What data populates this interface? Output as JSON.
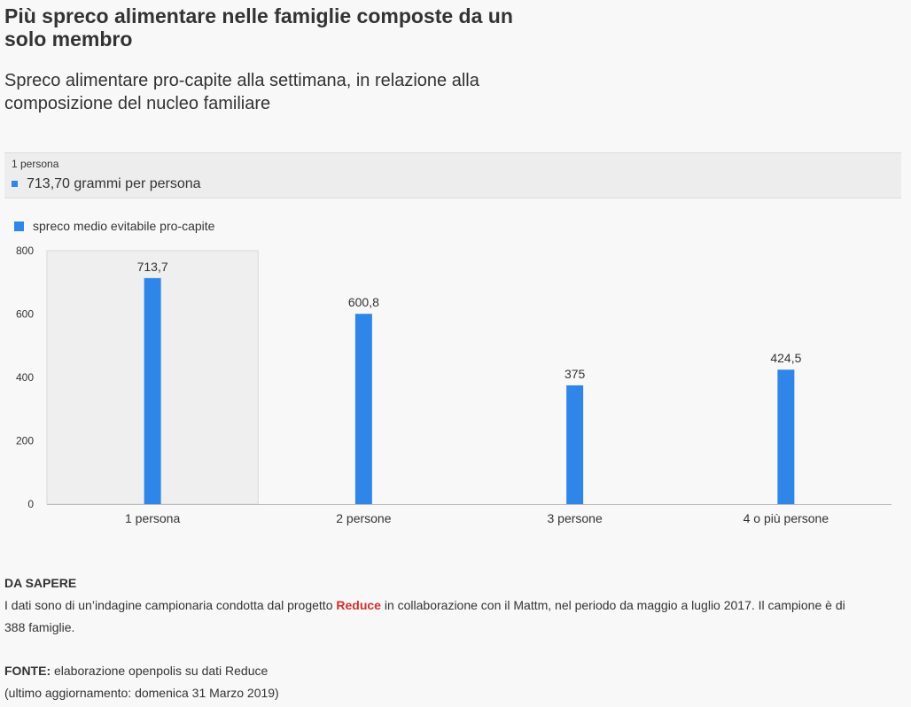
{
  "header": {
    "title": "Più spreco alimentare nelle famiglie composte da un solo membro",
    "subtitle": "Spreco alimentare pro-capite alla settimana, in relazione alla composizione del nucleo familiare"
  },
  "tooltip": {
    "category": "1 persona",
    "value_text": "713,70 grammi per persona"
  },
  "colors": {
    "bar": "#2f86e8",
    "highlight": "#efefef",
    "link": "#d32f2f"
  },
  "chart_data": {
    "type": "bar",
    "categories": [
      "1 persona",
      "2 persone",
      "3 persone",
      "4 o più persone"
    ],
    "series": [
      {
        "name": "spreco medio evitabile pro-capite",
        "values": [
          713.7,
          600.8,
          375,
          424.5
        ]
      }
    ],
    "data_labels": [
      "713,7",
      "600,8",
      "375",
      "424,5"
    ],
    "yticks": [
      "0",
      "200",
      "400",
      "600",
      "800"
    ],
    "ylim": [
      0,
      800
    ],
    "highlighted_category": "1 persona",
    "legend_position": "top-left"
  },
  "notes": {
    "heading": "DA SAPERE",
    "text_before": "I dati sono di un’indagine campionaria condotta dal progetto ",
    "link_text": "Reduce",
    "text_after": " in collaborazione con il Mattm, nel periodo da maggio a luglio 2017. Il campione è di 388 famiglie.",
    "source_label": "FONTE:",
    "source_text": " elaborazione openpolis su dati Reduce",
    "updated": "(ultimo aggiornamento: domenica 31 Marzo 2019)"
  }
}
